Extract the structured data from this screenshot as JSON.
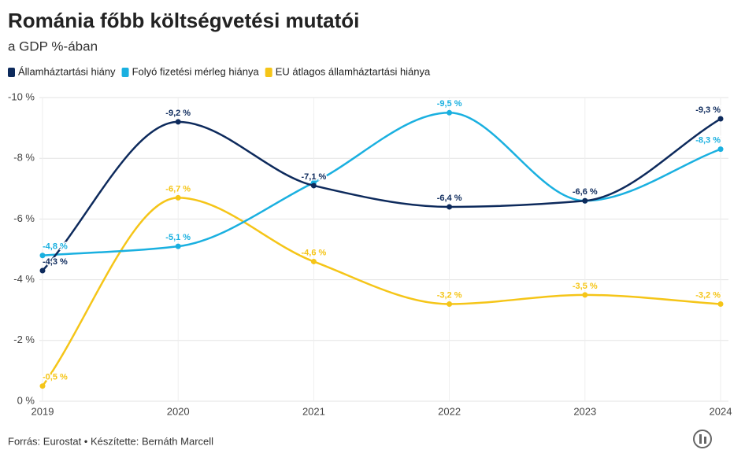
{
  "chart_data": {
    "type": "line",
    "title": "Románia főbb költségvetési mutatói",
    "subtitle": "a GDP %-ában",
    "source": "Forrás: Eurostat • Készítette: Bernáth Marcell",
    "categories": [
      "2019",
      "2020",
      "2021",
      "2022",
      "2023",
      "2024"
    ],
    "series": [
      {
        "name": "Államháztartási hiány",
        "color": "#0d2a5c",
        "values": [
          -4.3,
          -9.2,
          -7.1,
          -6.4,
          -6.6,
          -9.3
        ],
        "value_labels": [
          "-4,3 %",
          "-9,2 %",
          "-7,1 %",
          "-6,4 %",
          "-6,6 %",
          "-9,3 %"
        ]
      },
      {
        "name": "Folyó fizetési mérleg hiánya",
        "color": "#1ab0e0",
        "values": [
          -4.8,
          -5.1,
          -7.2,
          -9.5,
          -6.6,
          -8.3
        ],
        "value_labels": [
          "-4,8 %",
          "-5,1 %",
          null,
          "-9,5 %",
          null,
          "-8,3 %"
        ]
      },
      {
        "name": "EU átlagos államháztartási hiánya",
        "color": "#f5c518",
        "values": [
          -0.5,
          -6.7,
          -4.6,
          -3.2,
          -3.5,
          -3.2
        ],
        "value_labels": [
          "-0,5 %",
          "-6,7 %",
          "-4,6 %",
          "-3,2 %",
          "-3,5 %",
          "-3,2 %"
        ]
      }
    ],
    "ylim": [
      0,
      -10
    ],
    "yticks": [
      {
        "value": 0,
        "label": "0 %"
      },
      {
        "value": -2,
        "label": "-2 %"
      },
      {
        "value": -4,
        "label": "-4 %"
      },
      {
        "value": -6,
        "label": "-6 %"
      },
      {
        "value": -8,
        "label": "-8 %"
      },
      {
        "value": -10,
        "label": "-10 %"
      }
    ],
    "grid": true,
    "legend": "top-left"
  }
}
